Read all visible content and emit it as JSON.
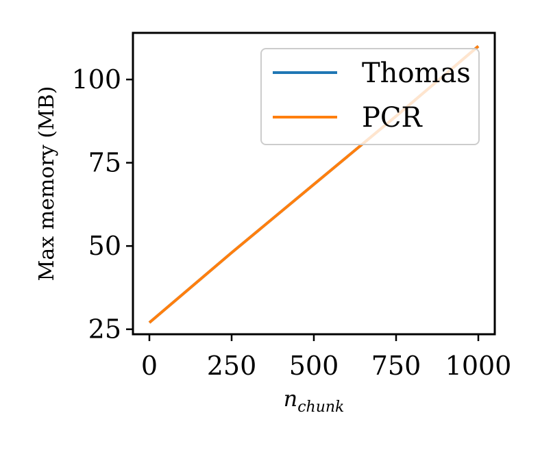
{
  "chart_data": {
    "type": "line",
    "xlabel_base": "n",
    "xlabel_sub": "chunk",
    "ylabel": "Max memory (MB)",
    "xlim": [
      -50,
      1050
    ],
    "ylim": [
      23.5,
      114
    ],
    "xticks": [
      0,
      250,
      500,
      750,
      1000
    ],
    "xtick_labels": [
      "0",
      "250",
      "500",
      "750",
      "1000"
    ],
    "yticks": [
      25,
      50,
      75,
      100
    ],
    "ytick_labels": [
      "25",
      "50",
      "75",
      "100"
    ],
    "grid": false,
    "legend_position": "top-right",
    "series": [
      {
        "name": "Thomas",
        "color": "#1f77b4",
        "x": [
          0,
          250,
          500,
          750,
          1000
        ],
        "y": [
          27,
          48,
          68.5,
          89,
          110
        ]
      },
      {
        "name": "PCR",
        "color": "#ff7f0e",
        "x": [
          0,
          250,
          500,
          750,
          1000
        ],
        "y": [
          27,
          48,
          68.5,
          89,
          110
        ]
      }
    ]
  }
}
